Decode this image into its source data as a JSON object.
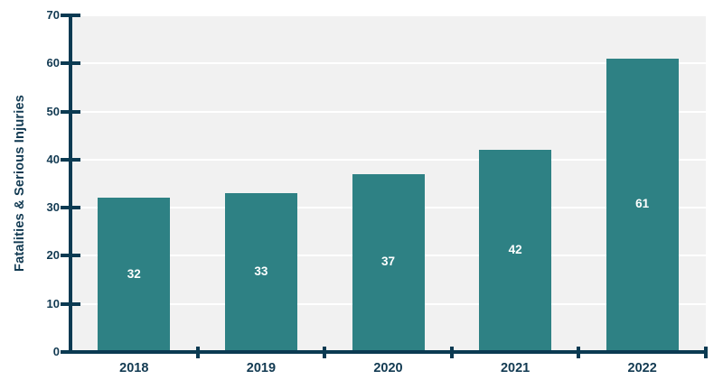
{
  "chart_data": {
    "type": "bar",
    "title": "",
    "categories": [
      "2018",
      "2019",
      "2020",
      "2021",
      "2022"
    ],
    "values": [
      32,
      33,
      37,
      42,
      61
    ],
    "data_labels": [
      "32",
      "33",
      "37",
      "42",
      "61"
    ],
    "xlabel": "",
    "ylabel": "Fatalities & Serious Injuries",
    "ylim": [
      0,
      70
    ],
    "yticks": [
      0,
      10,
      20,
      30,
      40,
      50,
      60,
      70
    ],
    "grid": true,
    "legend_position": "none",
    "colors": {
      "bar": "#2e8184",
      "bar_label": "#ffffff",
      "axis": "#0b3a52",
      "tick_label": "#123a52",
      "plot_background": "#f1f1f1",
      "gridline": "#ffffff",
      "page_background": "#ffffff"
    }
  }
}
